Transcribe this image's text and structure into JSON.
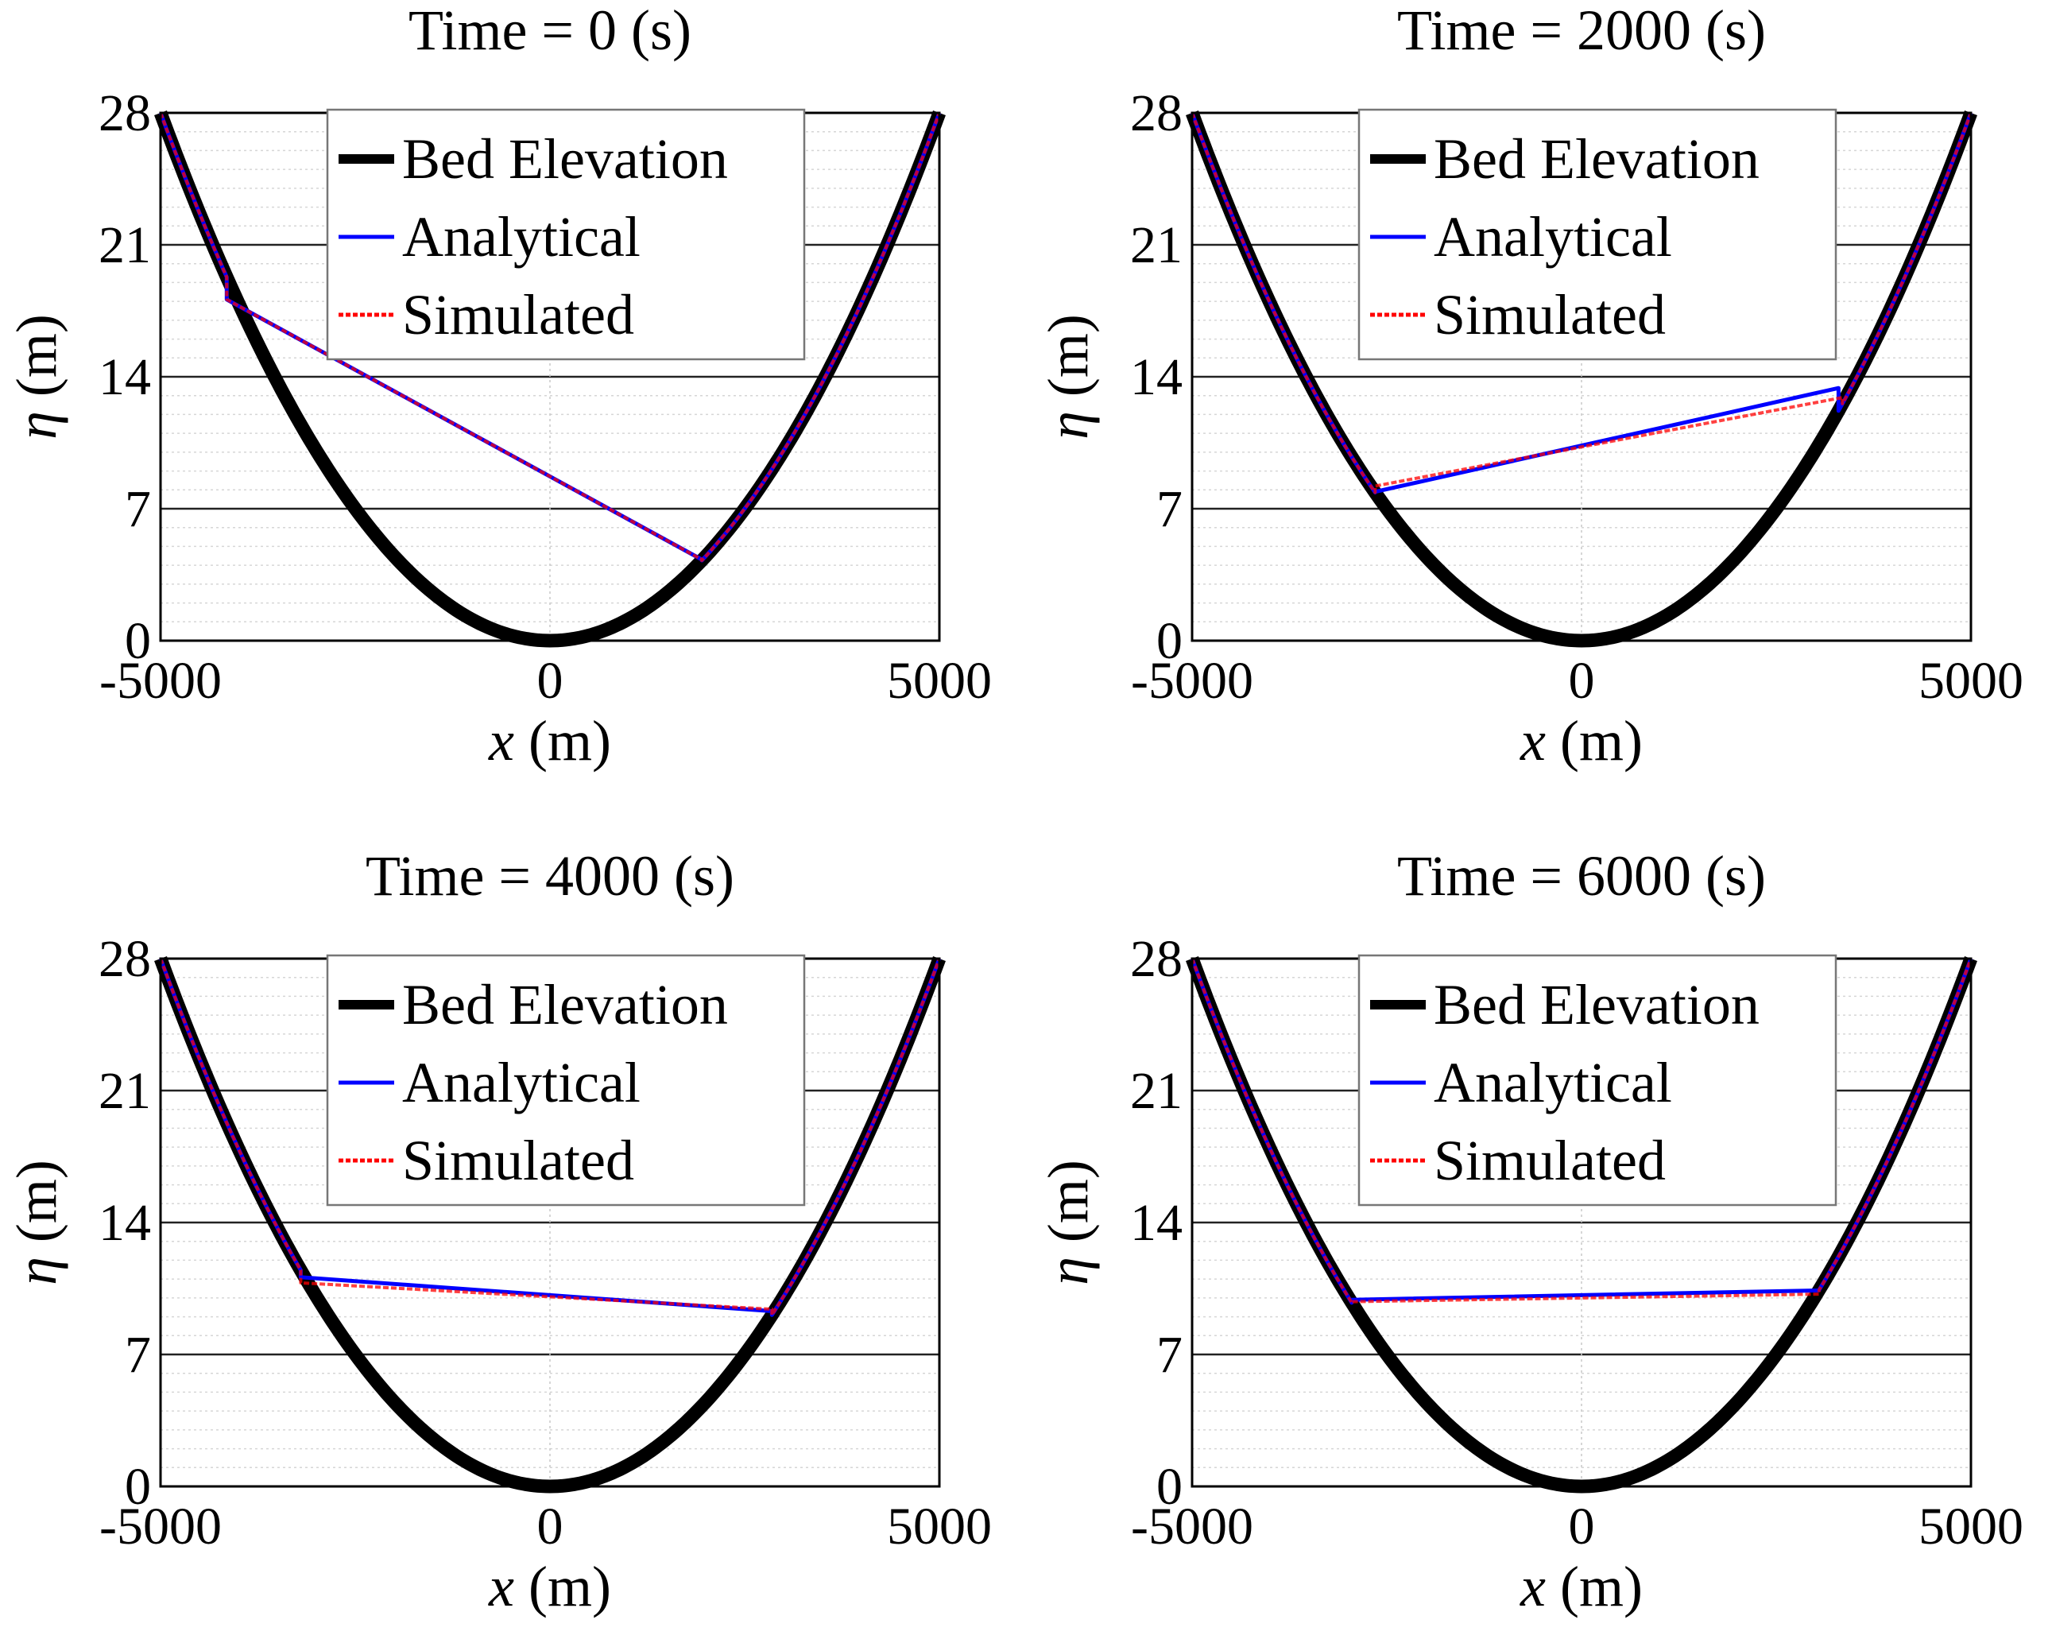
{
  "figure": "Parabolic bowl water surface comparison",
  "chart_data": [
    {
      "type": "line",
      "title": "Time = 0 (s)",
      "xlabel_var": "x",
      "xlabel_unit": "(m)",
      "ylabel_var": "η",
      "ylabel_unit": "(m)",
      "xlim": [
        -5000,
        5000
      ],
      "ylim": [
        0,
        28
      ],
      "xticks": [
        -5000,
        0,
        5000
      ],
      "yticks": [
        0,
        7,
        14,
        21,
        28
      ],
      "grid": true,
      "legend_position": "top-center",
      "legend": [
        "Bed Elevation",
        "Analytical",
        "Simulated"
      ],
      "bed": {
        "name": "Bed Elevation",
        "color": "#000000",
        "formula": "eta = 28 * (x/5000)^2",
        "x": [
          -5000,
          -4000,
          -3000,
          -2000,
          -1000,
          0,
          1000,
          2000,
          3000,
          4000,
          5000
        ],
        "y": [
          28,
          17.92,
          10.08,
          4.48,
          1.12,
          0,
          1.12,
          4.48,
          10.08,
          17.92,
          28
        ]
      },
      "series": [
        {
          "name": "Analytical",
          "color": "#0000ff",
          "x": [
            -4150,
            1950
          ],
          "y": [
            18.1,
            4.3
          ]
        },
        {
          "name": "Simulated",
          "color": "#ff0000",
          "x": [
            -4150,
            1950
          ],
          "y": [
            18.1,
            4.3
          ]
        }
      ]
    },
    {
      "type": "line",
      "title": "Time = 2000 (s)",
      "xlabel_var": "x",
      "xlabel_unit": "(m)",
      "ylabel_var": "η",
      "ylabel_unit": "(m)",
      "xlim": [
        -5000,
        5000
      ],
      "ylim": [
        0,
        28
      ],
      "xticks": [
        -5000,
        0,
        5000
      ],
      "yticks": [
        0,
        7,
        14,
        21,
        28
      ],
      "grid": true,
      "legend_position": "top-center",
      "legend": [
        "Bed Elevation",
        "Analytical",
        "Simulated"
      ],
      "bed": {
        "name": "Bed Elevation",
        "color": "#000000",
        "formula": "eta = 28 * (x/5000)^2",
        "x": [
          -5000,
          -4000,
          -3000,
          -2000,
          -1000,
          0,
          1000,
          2000,
          3000,
          4000,
          5000
        ],
        "y": [
          28,
          17.92,
          10.08,
          4.48,
          1.12,
          0,
          1.12,
          4.48,
          10.08,
          17.92,
          28
        ]
      },
      "series": [
        {
          "name": "Analytical",
          "color": "#0000ff",
          "x": [
            -2650,
            3300
          ],
          "y": [
            7.9,
            13.4
          ]
        },
        {
          "name": "Simulated",
          "color": "#ff0000",
          "x": [
            -2650,
            3350
          ],
          "y": [
            8.2,
            12.9
          ]
        }
      ]
    },
    {
      "type": "line",
      "title": "Time = 4000 (s)",
      "xlabel_var": "x",
      "xlabel_unit": "(m)",
      "ylabel_var": "η",
      "ylabel_unit": "(m)",
      "xlim": [
        -5000,
        5000
      ],
      "ylim": [
        0,
        28
      ],
      "xticks": [
        -5000,
        0,
        5000
      ],
      "yticks": [
        0,
        7,
        14,
        21,
        28
      ],
      "grid": true,
      "legend_position": "top-center",
      "legend": [
        "Bed Elevation",
        "Analytical",
        "Simulated"
      ],
      "bed": {
        "name": "Bed Elevation",
        "color": "#000000",
        "formula": "eta = 28 * (x/5000)^2",
        "x": [
          -5000,
          -4000,
          -3000,
          -2000,
          -1000,
          0,
          1000,
          2000,
          3000,
          4000,
          5000
        ],
        "y": [
          28,
          17.92,
          10.08,
          4.48,
          1.12,
          0,
          1.12,
          4.48,
          10.08,
          17.92,
          28
        ]
      },
      "series": [
        {
          "name": "Analytical",
          "color": "#0000ff",
          "x": [
            -3200,
            2850
          ],
          "y": [
            11.1,
            9.3
          ]
        },
        {
          "name": "Simulated",
          "color": "#ff0000",
          "x": [
            -3200,
            2850
          ],
          "y": [
            10.8,
            9.4
          ]
        }
      ]
    },
    {
      "type": "line",
      "title": "Time = 6000 (s)",
      "xlabel_var": "x",
      "xlabel_unit": "(m)",
      "ylabel_var": "η",
      "ylabel_unit": "(m)",
      "xlim": [
        -5000,
        5000
      ],
      "ylim": [
        0,
        28
      ],
      "xticks": [
        -5000,
        0,
        5000
      ],
      "yticks": [
        0,
        7,
        14,
        21,
        28
      ],
      "grid": true,
      "legend_position": "top-center",
      "legend": [
        "Bed Elevation",
        "Analytical",
        "Simulated"
      ],
      "bed": {
        "name": "Bed Elevation",
        "color": "#000000",
        "formula": "eta = 28 * (x/5000)^2",
        "x": [
          -5000,
          -4000,
          -3000,
          -2000,
          -1000,
          0,
          1000,
          2000,
          3000,
          4000,
          5000
        ],
        "y": [
          28,
          17.92,
          10.08,
          4.48,
          1.12,
          0,
          1.12,
          4.48,
          10.08,
          17.92,
          28
        ]
      },
      "series": [
        {
          "name": "Analytical",
          "color": "#0000ff",
          "x": [
            -2950,
            3050
          ],
          "y": [
            9.9,
            10.4
          ]
        },
        {
          "name": "Simulated",
          "color": "#ff0000",
          "x": [
            -2950,
            3050
          ],
          "y": [
            9.8,
            10.2
          ]
        }
      ]
    }
  ]
}
